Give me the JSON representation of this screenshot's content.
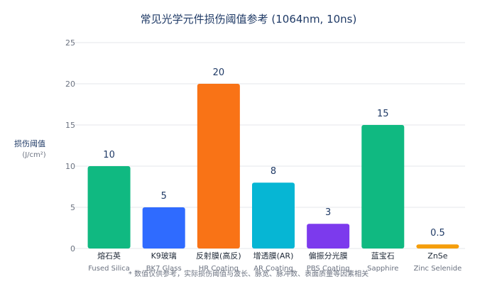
{
  "chart_data": {
    "type": "bar",
    "title": "常见光学元件损伤阈值参考 (1064nm, 10ns)",
    "ylabel": "损伤阈值",
    "yunit": "(J/cm²)",
    "ylim": [
      0,
      25
    ],
    "yticks": [
      0,
      5,
      10,
      15,
      20,
      25
    ],
    "grid": true,
    "categories": [
      {
        "zh": "熔石英",
        "en": "Fused Silica"
      },
      {
        "zh": "K9玻璃",
        "en": "BK7 Glass"
      },
      {
        "zh": "反射膜(高反)",
        "en": "HR Coating"
      },
      {
        "zh": "增透膜(AR)",
        "en": "AR Coating"
      },
      {
        "zh": "偏振分光膜",
        "en": "PBS Coating"
      },
      {
        "zh": "蓝宝石",
        "en": "Sapphire"
      },
      {
        "zh": "ZnSe",
        "en": "Zinc Selenide"
      }
    ],
    "values": [
      10,
      5,
      20,
      8,
      3,
      15,
      0.5
    ],
    "value_labels": [
      "10",
      "5",
      "20",
      "8",
      "3",
      "15",
      "0.5"
    ],
    "colors": [
      "#10b981",
      "#2f6bff",
      "#f97316",
      "#06b6d4",
      "#7c3aed",
      "#10b981",
      "#f59e0b"
    ],
    "footnote": "* 数值仅供参考，实际损伤阈值与波长、脉宽、脉冲数、表面质量等因素相关"
  }
}
